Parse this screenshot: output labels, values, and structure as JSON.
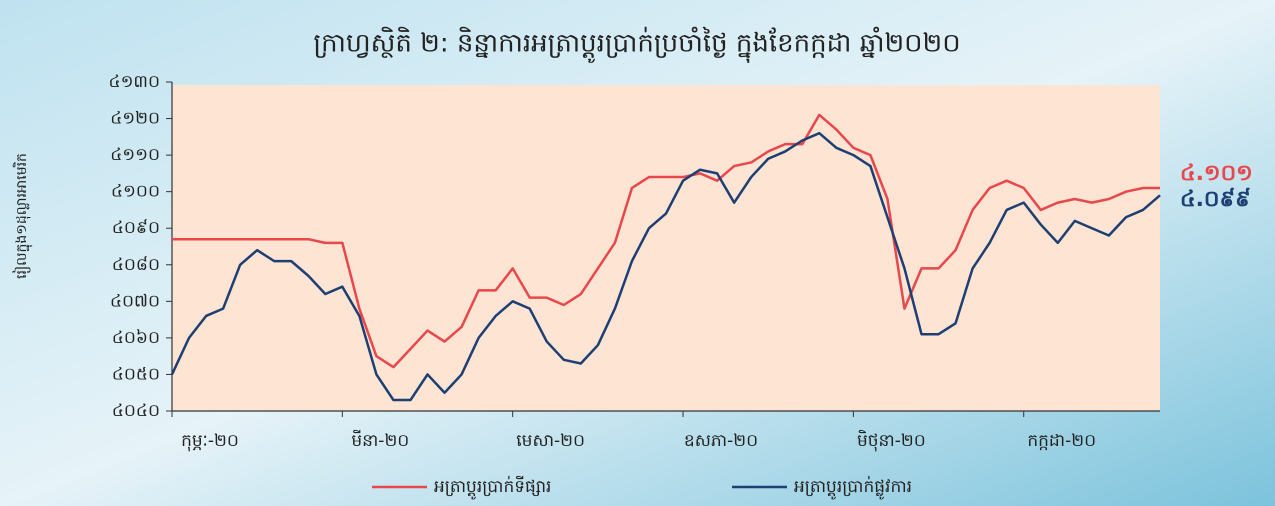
{
  "chart_data": {
    "type": "line",
    "title": "ក្រាហ្វស្ថិតិ ២: និន្នាការអត្រាប្តូរប្រាក់ប្រចាំថ្ងៃ ក្នុងខែកក្កដា ឆ្នាំ២០២០",
    "y_label": "រៀលក្នុង១ដុល្លារអាមេរិក",
    "categories": [
      "កុម្ភៈ-២០",
      null,
      null,
      null,
      null,
      null,
      null,
      null,
      null,
      null,
      "មីនា-២០",
      null,
      null,
      null,
      null,
      null,
      null,
      null,
      null,
      null,
      "មេសា-២០",
      null,
      null,
      null,
      null,
      null,
      null,
      null,
      null,
      null,
      "ឧសភា-២០",
      null,
      null,
      null,
      null,
      null,
      null,
      null,
      null,
      null,
      "មិថុនា-២០",
      null,
      null,
      null,
      null,
      null,
      null,
      null,
      null,
      null,
      "កក្កដា-២០",
      null,
      null,
      null,
      null,
      null,
      null,
      null,
      null
    ],
    "series": [
      {
        "name": "អត្រាប្តូរប្រាក់ទីផ្សារ",
        "color": "#e8474c",
        "values": [
          4087,
          4087,
          4087,
          4087,
          4087,
          4087,
          4087,
          4087,
          4087,
          4086,
          4086,
          4068,
          4055,
          4052,
          4057,
          4062,
          4059,
          4063,
          4073,
          4073,
          4079,
          4071,
          4071,
          4069,
          4072,
          4079,
          4086,
          4101,
          4104,
          4104,
          4104,
          4105,
          4103,
          4107,
          4108,
          4111,
          4113,
          4113,
          4121,
          4117,
          4112,
          4110,
          4098,
          4068,
          4079,
          4079,
          4084,
          4095,
          4101,
          4103,
          4101,
          4095,
          4097,
          4098,
          4097,
          4098,
          4100,
          4101,
          4101
        ],
        "value_labels": [
          null,
          null,
          null,
          null,
          null,
          null,
          null,
          null,
          null,
          null,
          null,
          null,
          null,
          null,
          null,
          null,
          null,
          null,
          null,
          null,
          null,
          null,
          null,
          null,
          null,
          null,
          null,
          null,
          null,
          null,
          null,
          null,
          null,
          null,
          null,
          null,
          null,
          null,
          null,
          null,
          null,
          null,
          null,
          null,
          null,
          null,
          null,
          null,
          null,
          null,
          null,
          null,
          null,
          null,
          null,
          null,
          null,
          null,
          "៤.១០១"
        ]
      },
      {
        "name": "អត្រាប្តូរប្រាក់ផ្លូវការ",
        "color": "#1d3f73",
        "values": [
          4050,
          4060,
          4066,
          4068,
          4080,
          4084,
          4081,
          4081,
          4077,
          4072,
          4074,
          4066,
          4050,
          4043,
          4043,
          4050,
          4045,
          4050,
          4060,
          4066,
          4070,
          4068,
          4059,
          4054,
          4053,
          4058,
          4068,
          4081,
          4090,
          4094,
          4103,
          4106,
          4105,
          4097,
          4104,
          4109,
          4111,
          4114,
          4116,
          4112,
          4110,
          4107,
          4093,
          4079,
          4061,
          4061,
          4064,
          4079,
          4086,
          4095,
          4097,
          4091,
          4086,
          4092,
          4090,
          4088,
          4093,
          4095,
          4099
        ],
        "value_labels": [
          null,
          null,
          null,
          null,
          null,
          null,
          null,
          null,
          null,
          null,
          null,
          null,
          null,
          null,
          null,
          null,
          null,
          null,
          null,
          null,
          null,
          null,
          null,
          null,
          null,
          null,
          null,
          null,
          null,
          null,
          null,
          null,
          null,
          null,
          null,
          null,
          null,
          null,
          null,
          null,
          null,
          null,
          null,
          null,
          null,
          null,
          null,
          null,
          null,
          null,
          null,
          null,
          null,
          null,
          null,
          null,
          null,
          null,
          "៤.០៩៩"
        ]
      }
    ],
    "ylim": [
      4040,
      4130
    ],
    "yticks": [
      {
        "value": 4040,
        "label": "៤០៤០"
      },
      {
        "value": 4050,
        "label": "៤០៥០"
      },
      {
        "value": 4060,
        "label": "៤០៦០"
      },
      {
        "value": 4070,
        "label": "៤០៧០"
      },
      {
        "value": 4080,
        "label": "៤០៨០"
      },
      {
        "value": 4090,
        "label": "៤០៩០"
      },
      {
        "value": 4100,
        "label": "៤១០០"
      },
      {
        "value": 4110,
        "label": "៤១១០"
      },
      {
        "value": 4120,
        "label": "៤១២០"
      },
      {
        "value": 4130,
        "label": "៤១៣០"
      }
    ],
    "grid": false,
    "legend": "bottom"
  }
}
